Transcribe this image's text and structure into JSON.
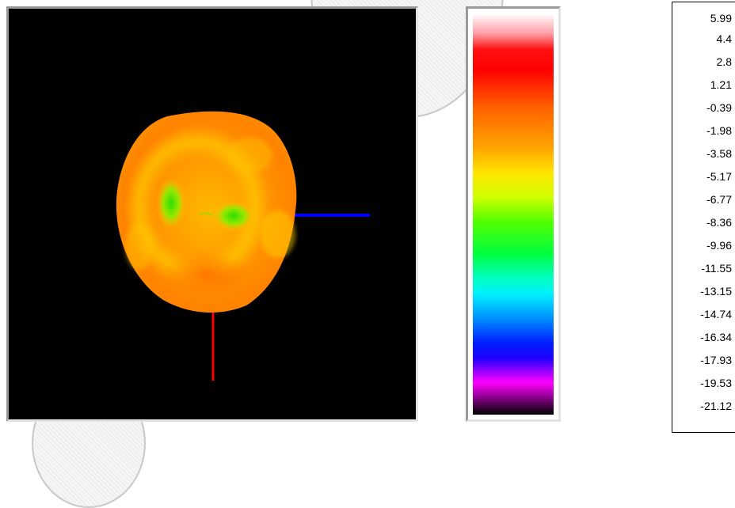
{
  "viewport": {
    "background": "#000000",
    "surface_colors": [
      "#ff8a00",
      "#ffb000",
      "#ffd400",
      "#2ee000"
    ],
    "axis_colors": {
      "horizontal": "#0000ff",
      "vertical": "#ff0000"
    }
  },
  "colorbar": {
    "gradient_top_to_bottom": [
      "#ffffff",
      "#ff9ea8",
      "#ff0000",
      "#ff6600",
      "#ffa000",
      "#ffe600",
      "#ccff00",
      "#50ff00",
      "#00ff40",
      "#00ffc0",
      "#00f0ff",
      "#0090ff",
      "#0020ff",
      "#9000ff",
      "#ff00ff",
      "#000000"
    ]
  },
  "scale": {
    "labels": [
      "5.99",
      "4.4",
      "2.8",
      "1.21",
      "-0.39",
      "-1.98",
      "-3.58",
      "-5.17",
      "-6.77",
      "-8.36",
      "-9.96",
      "-11.55",
      "-13.15",
      "-14.74",
      "-16.34",
      "-17.93",
      "-19.53",
      "-21.12"
    ]
  }
}
